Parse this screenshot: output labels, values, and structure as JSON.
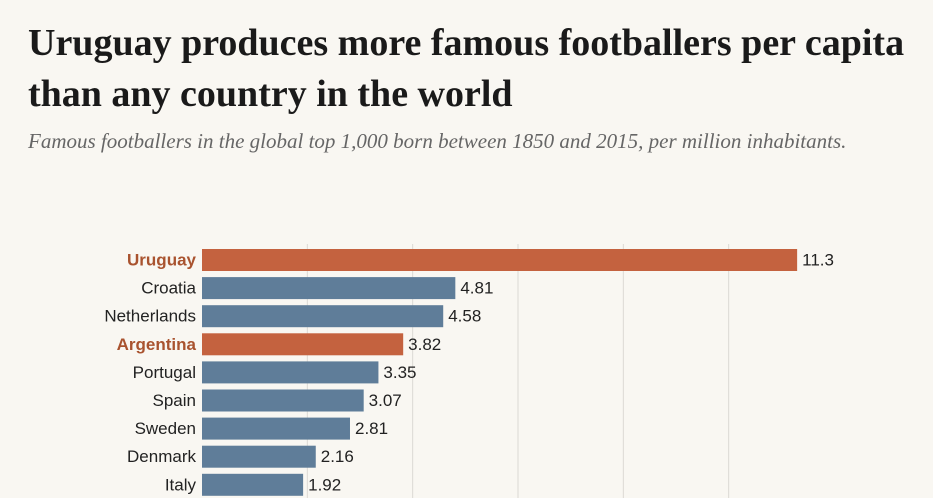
{
  "chart_data": {
    "type": "barh",
    "title": "Uruguay produces more famous footballers per capita than any country in the world",
    "subtitle": "Famous footballers in the global top 1,000 born between 1850 and 2015, per million inhabitants.",
    "categories": [
      "Uruguay",
      "Croatia",
      "Netherlands",
      "Argentina",
      "Portugal",
      "Spain",
      "Sweden",
      "Denmark",
      "Italy"
    ],
    "values": [
      11.3,
      4.81,
      4.58,
      3.82,
      3.35,
      3.07,
      2.81,
      2.16,
      1.92
    ],
    "colors": [
      "#c4623f",
      "#5f7d99",
      "#5f7d99",
      "#c4623f",
      "#5f7d99",
      "#5f7d99",
      "#5f7d99",
      "#5f7d99",
      "#5f7d99"
    ],
    "label_colors": [
      "#a9532f",
      "#222222",
      "#222222",
      "#a9532f",
      "#222222",
      "#222222",
      "#222222",
      "#222222",
      "#222222"
    ],
    "xlim": [
      0,
      12
    ],
    "xticks": [
      2,
      4,
      6,
      8,
      10
    ],
    "grid": true
  }
}
